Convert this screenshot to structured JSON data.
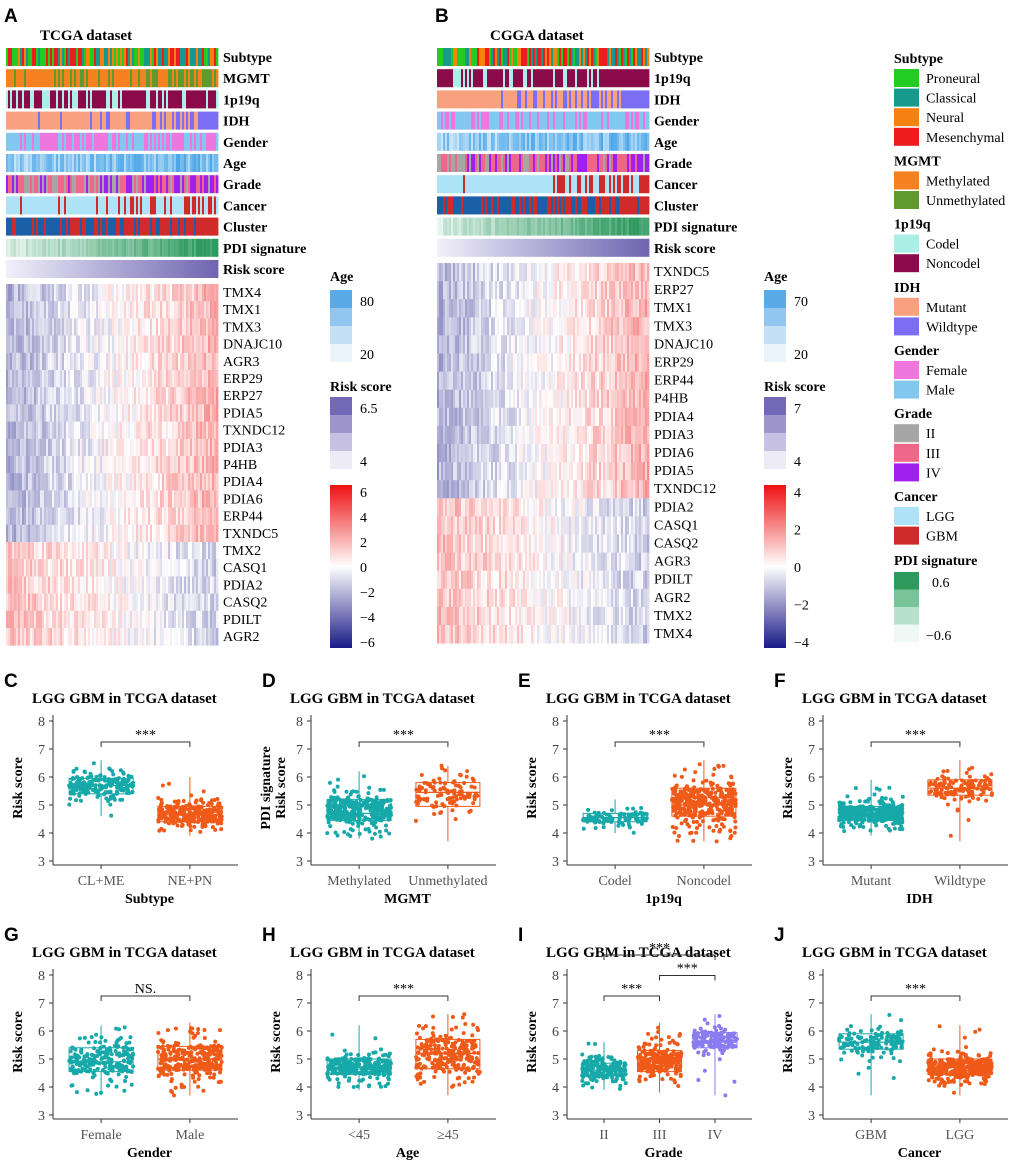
{
  "colors": {
    "teal": "#17a9a9",
    "orange": "#f05a18",
    "purple": "#8a7bf0",
    "proneural": "#22cc22",
    "classical": "#169a8c",
    "neural": "#f5820f",
    "mesenchymal": "#ee1d1d",
    "methylated": "#f5821e",
    "unmethylated": "#5e9a2e",
    "codel": "#aaeee6",
    "noncodel": "#8a0a4a",
    "mutant": "#f9a07e",
    "wildtype": "#7b6ef2",
    "female": "#ee77dd",
    "male": "#82c8ee",
    "grade_ii": "#a6a6a6",
    "grade_iii": "#ee6688",
    "grade_iv": "#a020f0",
    "lgg": "#aee2f7",
    "gbm": "#d12a2a",
    "pdi_high": "#2e9a5e",
    "pdi_low": "#eef8f5",
    "heat_high": "#ee1111",
    "heat_low": "#1a1a88",
    "age_high": "#4da6e8",
    "risk_high": "#6e64b0"
  },
  "panels": {
    "A": {
      "label": "A",
      "title": "TCGA dataset",
      "annotations": [
        "Subtype",
        "MGMT",
        "1p19q",
        "IDH",
        "Gender",
        "Age",
        "Grade",
        "Cancer",
        "Cluster",
        "PDI signature",
        "Risk score"
      ],
      "genes": [
        "TMX4",
        "TMX1",
        "TMX3",
        "DNAJC10",
        "AGR3",
        "ERP29",
        "ERP27",
        "PDIA5",
        "TXNDC12",
        "PDIA3",
        "P4HB",
        "PDIA4",
        "PDIA6",
        "ERP44",
        "TXNDC5",
        "TMX2",
        "CASQ1",
        "PDIA2",
        "CASQ2",
        "PDILT",
        "AGR2"
      ],
      "up_count": 15
    },
    "B": {
      "label": "B",
      "title": "CGGA dataset",
      "annotations": [
        "Subtype",
        "1p19q",
        "IDH",
        "Gender",
        "Age",
        "Grade",
        "Cancer",
        "Cluster",
        "PDI signature",
        "Risk score"
      ],
      "genes": [
        "TXNDC5",
        "ERP27",
        "TMX1",
        "TMX3",
        "DNAJC10",
        "ERP29",
        "ERP44",
        "P4HB",
        "PDIA4",
        "PDIA3",
        "PDIA6",
        "PDIA5",
        "TXNDC12",
        "PDIA2",
        "CASQ1",
        "CASQ2",
        "AGR3",
        "PDILT",
        "AGR2",
        "TMX2",
        "TMX4"
      ],
      "up_count": 13
    }
  },
  "scales": {
    "A": {
      "age": {
        "title": "Age",
        "max": "80",
        "min": "20"
      },
      "risk": {
        "title": "Risk score",
        "max": "6.5",
        "min": "4"
      },
      "heat": [
        "6",
        "4",
        "2",
        "0",
        "−2",
        "−4",
        "−6"
      ]
    },
    "B": {
      "age": {
        "title": "Age",
        "max": "70",
        "min": "20"
      },
      "risk": {
        "title": "Risk score",
        "max": "7",
        "min": "4"
      },
      "heat": [
        "4",
        "2",
        "0",
        "−2",
        "−4"
      ]
    }
  },
  "legend": [
    {
      "title": "Subtype",
      "items": [
        {
          "label": "Proneural",
          "color": "#22cc22"
        },
        {
          "label": "Classical",
          "color": "#169a8c"
        },
        {
          "label": "Neural",
          "color": "#f5820f"
        },
        {
          "label": "Mesenchymal",
          "color": "#ee1d1d"
        }
      ]
    },
    {
      "title": "MGMT",
      "items": [
        {
          "label": "Methylated",
          "color": "#f5821e"
        },
        {
          "label": "Unmethylated",
          "color": "#5e9a2e"
        }
      ]
    },
    {
      "title": "1p19q",
      "items": [
        {
          "label": "Codel",
          "color": "#aaeee6"
        },
        {
          "label": "Noncodel",
          "color": "#8a0a4a"
        }
      ]
    },
    {
      "title": "IDH",
      "items": [
        {
          "label": "Mutant",
          "color": "#f9a07e"
        },
        {
          "label": "Wildtype",
          "color": "#7b6ef2"
        }
      ]
    },
    {
      "title": "Gender",
      "items": [
        {
          "label": "Female",
          "color": "#ee77dd"
        },
        {
          "label": "Male",
          "color": "#82c8ee"
        }
      ]
    },
    {
      "title": "Grade",
      "items": [
        {
          "label": "II",
          "color": "#a6a6a6"
        },
        {
          "label": "III",
          "color": "#ee6688"
        },
        {
          "label": "IV",
          "color": "#a020f0"
        }
      ]
    },
    {
      "title": "Cancer",
      "items": [
        {
          "label": "LGG",
          "color": "#aee2f7"
        },
        {
          "label": "GBM",
          "color": "#d12a2a"
        }
      ]
    }
  ],
  "legend_pdi": {
    "title": "PDI signature",
    "max": "0.6",
    "min": "−0.6"
  },
  "chart_data": [
    {
      "panel": "C",
      "type": "scatter",
      "title": "LGG GBM in TCGA dataset",
      "xlabel": "Subtype",
      "ylabel": "Risk score",
      "ylim": [
        3,
        8
      ],
      "yticks": [
        "3",
        "4",
        "5",
        "6",
        "7",
        "8"
      ],
      "groups": [
        {
          "name": "CL+ME",
          "median": 5.7,
          "q1": 5.4,
          "q3": 5.95,
          "min": 4.6,
          "max": 6.6,
          "n": 200
        },
        {
          "name": "NE+PN",
          "median": 4.65,
          "q1": 4.4,
          "q3": 4.95,
          "min": 3.9,
          "max": 6.0,
          "n": 260
        }
      ],
      "sig": [
        {
          "from": 0,
          "to": 1,
          "label": "***",
          "level": 0
        }
      ]
    },
    {
      "panel": "D",
      "type": "scatter",
      "title": "LGG GBM in TCGA dataset",
      "xlabel": "MGMT",
      "ylabel": "PDI signature Risk score",
      "ylim": [
        3,
        8
      ],
      "yticks": [
        "3",
        "4",
        "5",
        "6",
        "7",
        "8"
      ],
      "groups": [
        {
          "name": "Methylated",
          "median": 4.7,
          "q1": 4.45,
          "q3": 5.2,
          "min": 3.8,
          "max": 6.2,
          "n": 330
        },
        {
          "name": "Unmethylated",
          "median": 5.45,
          "q1": 4.95,
          "q3": 5.8,
          "min": 3.7,
          "max": 6.4,
          "n": 110
        }
      ],
      "sig": [
        {
          "from": 0,
          "to": 1,
          "label": "***",
          "level": 0
        }
      ]
    },
    {
      "panel": "E",
      "type": "scatter",
      "title": "LGG GBM in TCGA dataset",
      "xlabel": "1p19q",
      "ylabel": "Risk score",
      "ylim": [
        3,
        8
      ],
      "yticks": [
        "3",
        "4",
        "5",
        "6",
        "7",
        "8"
      ],
      "groups": [
        {
          "name": "Codel",
          "median": 4.55,
          "q1": 4.4,
          "q3": 4.7,
          "min": 4.0,
          "max": 5.2,
          "n": 110
        },
        {
          "name": "Noncodel",
          "median": 5.0,
          "q1": 4.6,
          "q3": 5.6,
          "min": 3.7,
          "max": 6.6,
          "n": 360
        }
      ],
      "sig": [
        {
          "from": 0,
          "to": 1,
          "label": "***",
          "level": 0
        }
      ]
    },
    {
      "panel": "F",
      "type": "scatter",
      "title": "LGG GBM in TCGA dataset",
      "xlabel": "IDH",
      "ylabel": "Risk score",
      "ylim": [
        3,
        8
      ],
      "yticks": [
        "3",
        "4",
        "5",
        "6",
        "7",
        "8"
      ],
      "groups": [
        {
          "name": "Mutant",
          "median": 4.7,
          "q1": 4.45,
          "q3": 4.95,
          "min": 3.9,
          "max": 5.9,
          "n": 370
        },
        {
          "name": "Wildtype",
          "median": 5.6,
          "q1": 5.35,
          "q3": 5.9,
          "min": 3.7,
          "max": 6.6,
          "n": 130
        }
      ],
      "sig": [
        {
          "from": 0,
          "to": 1,
          "label": "***",
          "level": 0
        }
      ]
    },
    {
      "panel": "G",
      "type": "scatter",
      "title": "LGG GBM in TCGA dataset",
      "xlabel": "Gender",
      "ylabel": "Risk score",
      "ylim": [
        3,
        8
      ],
      "yticks": [
        "3",
        "4",
        "5",
        "6",
        "7",
        "8"
      ],
      "groups": [
        {
          "name": "Female",
          "median": 4.9,
          "q1": 4.55,
          "q3": 5.4,
          "min": 3.7,
          "max": 6.2,
          "n": 220
        },
        {
          "name": "Male",
          "median": 5.0,
          "q1": 4.6,
          "q3": 5.45,
          "min": 3.7,
          "max": 6.3,
          "n": 280
        }
      ],
      "sig": [
        {
          "from": 0,
          "to": 1,
          "label": "NS.",
          "level": 0
        }
      ]
    },
    {
      "panel": "H",
      "type": "scatter",
      "title": "LGG GBM in TCGA dataset",
      "xlabel": "Age",
      "ylabel": "Risk score",
      "ylim": [
        3,
        8
      ],
      "yticks": [
        "3",
        "4",
        "5",
        "6",
        "7",
        "8"
      ],
      "groups": [
        {
          "name": "<45",
          "median": 4.7,
          "q1": 4.45,
          "q3": 5.0,
          "min": 3.9,
          "max": 6.2,
          "n": 260
        },
        {
          "name": "≥45",
          "median": 5.2,
          "q1": 4.65,
          "q3": 5.7,
          "min": 3.7,
          "max": 6.6,
          "n": 250
        }
      ],
      "sig": [
        {
          "from": 0,
          "to": 1,
          "label": "***",
          "level": 0
        }
      ]
    },
    {
      "panel": "I",
      "type": "scatter",
      "title": "LGG GBM in TCGA dataset",
      "xlabel": "Grade",
      "ylabel": "Risk score",
      "ylim": [
        3,
        8
      ],
      "yticks": [
        "3",
        "4",
        "5",
        "6",
        "7",
        "8"
      ],
      "groups": [
        {
          "name": "II",
          "median": 4.6,
          "q1": 4.4,
          "q3": 4.85,
          "min": 3.9,
          "max": 5.6,
          "n": 200
        },
        {
          "name": "III",
          "median": 4.9,
          "q1": 4.55,
          "q3": 5.3,
          "min": 3.8,
          "max": 6.3,
          "n": 230
        },
        {
          "name": "IV",
          "median": 5.65,
          "q1": 5.4,
          "q3": 5.95,
          "min": 3.7,
          "max": 6.6,
          "n": 140
        }
      ],
      "sig": [
        {
          "from": 0,
          "to": 1,
          "label": "***",
          "level": 0
        },
        {
          "from": 1,
          "to": 2,
          "label": "***",
          "level": 1
        },
        {
          "from": 0,
          "to": 2,
          "label": "***",
          "level": 2
        }
      ]
    },
    {
      "panel": "J",
      "type": "scatter",
      "title": "LGG GBM in TCGA dataset",
      "xlabel": "Cancer",
      "ylabel": "Risk score",
      "ylim": [
        3,
        8
      ],
      "yticks": [
        "3",
        "4",
        "5",
        "6",
        "7",
        "8"
      ],
      "groups": [
        {
          "name": "GBM",
          "median": 5.6,
          "q1": 5.35,
          "q3": 5.9,
          "min": 3.7,
          "max": 6.6,
          "n": 140
        },
        {
          "name": "LGG",
          "median": 4.7,
          "q1": 4.45,
          "q3": 5.0,
          "min": 3.7,
          "max": 6.2,
          "n": 380
        }
      ],
      "sig": [
        {
          "from": 0,
          "to": 1,
          "label": "***",
          "level": 0
        }
      ]
    }
  ]
}
